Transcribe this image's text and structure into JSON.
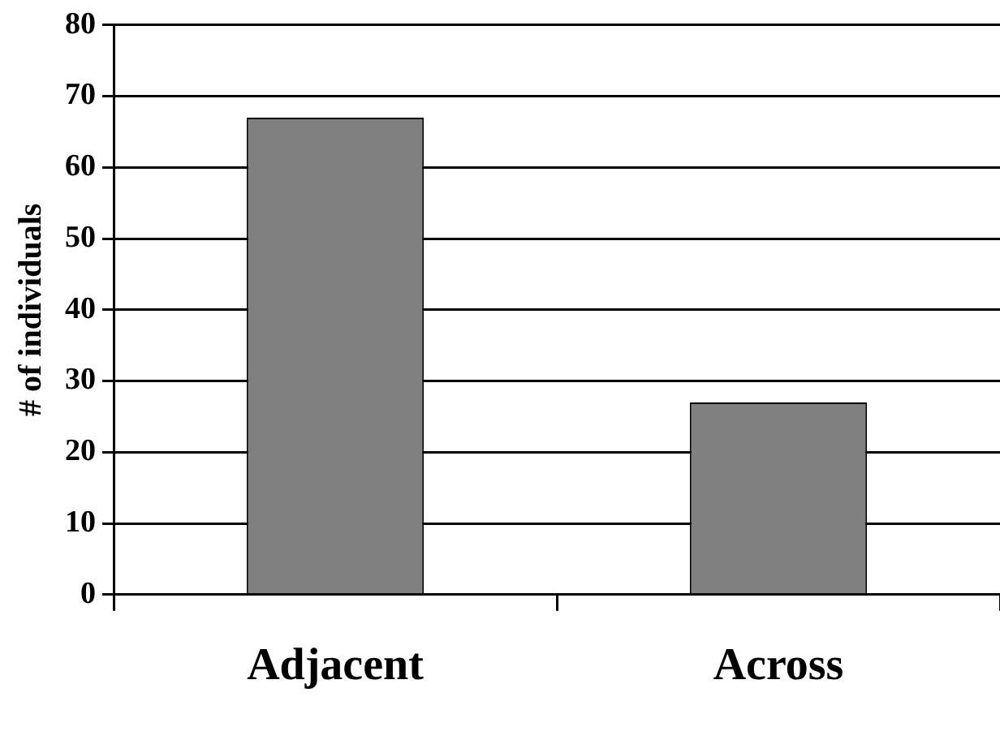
{
  "chart_data": {
    "type": "bar",
    "ylabel": "# of individuals",
    "categories": [
      "Adjacent",
      "Across"
    ],
    "values": [
      67,
      27
    ],
    "color": "#808080",
    "ylim": [
      0,
      80
    ],
    "yticks": [
      0,
      10,
      20,
      30,
      40,
      50,
      60,
      70,
      80
    ],
    "grid": "y"
  }
}
